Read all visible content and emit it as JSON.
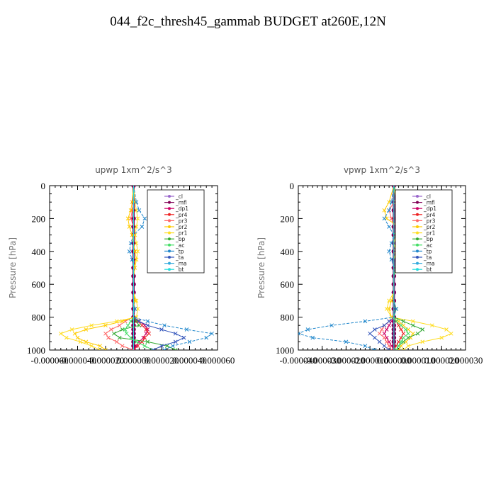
{
  "page": {
    "title": "044_f2c_thresh45_gammab  BUDGET at260E,12N"
  },
  "legend_labels": [
    "_cl",
    "_mfl",
    "_dp1",
    "_pr4",
    "_pr3",
    "_pr2",
    "_pr1",
    "_bp",
    "_ac",
    "_tp",
    "_ta",
    "_ma",
    "_bt"
  ],
  "colors": {
    "_cl": "#9966cc",
    "_mfl": "#800055",
    "_dp1": "#cc0066",
    "_pr4": "#ee2222",
    "_pr3": "#ff6666",
    "_pr2": "#ffcc00",
    "_pr1": "#ffdd22",
    "_bp": "#33aa33",
    "_ac": "#44dd66",
    "_tp": "#2288cc",
    "_ta": "#3355bb",
    "_ma": "#33aadd",
    "_bt": "#22dddd"
  },
  "chart_data": [
    {
      "type": "line",
      "title": "upwp   1xm^2/s^3",
      "ylabel": "Pressure [hPa]",
      "xlabel": "",
      "xlim": [
        -6e-05,
        6e-05
      ],
      "ylim": [
        1000,
        0
      ],
      "x_tick_labels": [
        "-0.000060",
        "-0.000040",
        "-0.000020",
        "0.000000",
        "0.000020",
        "0.000040",
        "0.000060"
      ],
      "y_tick_labels": [
        "0",
        "200",
        "400",
        "600",
        "800",
        "1000"
      ],
      "legend_position": "top-right",
      "y": [
        0,
        100,
        150,
        200,
        250,
        300,
        350,
        400,
        450,
        500,
        550,
        600,
        650,
        700,
        750,
        800,
        825,
        850,
        875,
        900,
        925,
        950,
        975,
        1000
      ],
      "series": [
        {
          "name": "_cl",
          "values": [
            0,
            0,
            0,
            0,
            0,
            0,
            0,
            0,
            0,
            0,
            0,
            0,
            0,
            0,
            0,
            0,
            0,
            0,
            0,
            0,
            0,
            0,
            0,
            0
          ]
        },
        {
          "name": "_mfl",
          "values": [
            0,
            0,
            0,
            0,
            0,
            0,
            0,
            0,
            0,
            0,
            0,
            0,
            0,
            0,
            0,
            0,
            0,
            0,
            0,
            0,
            0,
            0,
            0,
            0
          ]
        },
        {
          "name": "_dp1",
          "values": [
            0,
            0,
            0,
            0,
            0,
            0,
            0,
            0,
            0,
            0,
            0,
            0,
            0,
            0,
            0,
            0,
            4e-06,
            8e-06,
            1e-05,
            9e-06,
            7e-06,
            4e-06,
            2e-06,
            0
          ]
        },
        {
          "name": "_pr4",
          "values": [
            0,
            0,
            0,
            0,
            0,
            0,
            0,
            0,
            0,
            0,
            0,
            0,
            0,
            0,
            0,
            0,
            3e-06,
            6e-06,
            9e-06,
            1.1e-05,
            8e-06,
            6e-06,
            3e-06,
            0
          ]
        },
        {
          "name": "_pr3",
          "values": [
            0,
            0,
            -1e-06,
            -2e-06,
            0,
            0,
            0,
            0,
            0,
            0,
            0,
            0,
            0,
            0,
            0,
            0,
            -6e-06,
            -1e-05,
            -1.6e-05,
            -2e-05,
            -1.8e-05,
            -1.2e-05,
            -8e-06,
            0
          ]
        },
        {
          "name": "_pr2",
          "values": [
            0,
            -1e-06,
            -2e-06,
            -4e-06,
            -3e-06,
            -1e-06,
            0,
            1e-06,
            2e-06,
            0,
            0,
            0,
            0,
            1e-06,
            0,
            0,
            -8e-06,
            -2e-05,
            -3.4e-05,
            -4.2e-05,
            -4e-05,
            -3.4e-05,
            -2.4e-05,
            -2e-05
          ]
        },
        {
          "name": "_pr1",
          "values": [
            0,
            1e-06,
            2e-06,
            3e-06,
            2e-06,
            1e-06,
            2e-06,
            3e-06,
            2e-06,
            1e-06,
            0,
            0,
            0,
            2e-06,
            3e-06,
            2e-06,
            -1.2e-05,
            -3e-05,
            -4.4e-05,
            -5.2e-05,
            -4.8e-05,
            -3.8e-05,
            -3e-05,
            -2.4e-05
          ]
        },
        {
          "name": "_bp",
          "values": [
            0,
            0,
            0,
            0,
            0,
            0,
            0,
            0,
            0,
            0,
            0,
            0,
            0,
            0,
            0,
            0,
            2e-06,
            4e-06,
            -8e-06,
            -1.4e-05,
            -1e-05,
            1e-05,
            2.4e-05,
            3e-05
          ]
        },
        {
          "name": "_ac",
          "values": [
            0,
            0,
            0,
            0,
            0,
            0,
            0,
            0,
            0,
            0,
            0,
            0,
            0,
            0,
            0,
            0,
            -2e-06,
            -4e-06,
            -6e-06,
            -5e-06,
            -2e-06,
            2e-06,
            8e-06,
            1.4e-05
          ]
        },
        {
          "name": "_tp",
          "values": [
            0,
            2e-06,
            4e-06,
            8e-06,
            6e-06,
            0,
            -2e-06,
            -3e-06,
            -1e-06,
            0,
            0,
            0,
            0,
            0,
            1e-06,
            0,
            1e-05,
            2.2e-05,
            3.8e-05,
            5.6e-05,
            5.2e-05,
            4e-05,
            2.8e-05,
            2.2e-05
          ]
        },
        {
          "name": "_ta",
          "values": [
            0,
            0,
            0,
            0,
            0,
            0,
            0,
            0,
            0,
            0,
            0,
            0,
            0,
            0,
            0,
            0,
            4e-06,
            1e-05,
            2e-05,
            3e-05,
            3.6e-05,
            3e-05,
            2e-05,
            1.4e-05
          ]
        },
        {
          "name": "_ma",
          "values": [
            0,
            0,
            0,
            0,
            0,
            0,
            0,
            0,
            0,
            0,
            0,
            0,
            0,
            0,
            0,
            0,
            0,
            0,
            0,
            0,
            0,
            0,
            0,
            0
          ]
        },
        {
          "name": "_bt",
          "values": [
            0,
            0,
            0,
            0,
            0,
            0,
            0,
            0,
            0,
            0,
            0,
            0,
            0,
            0,
            0,
            0,
            0,
            0,
            0,
            0,
            0,
            0,
            0,
            0
          ]
        }
      ]
    },
    {
      "type": "line",
      "title": "vpwp   1xm^2/s^3",
      "ylabel": "Pressure [hPa]",
      "xlabel": "",
      "xlim": [
        -4e-05,
        3e-05
      ],
      "ylim": [
        1000,
        0
      ],
      "x_tick_labels": [
        "-0.000040",
        "-0.000030",
        "-0.000020",
        "-0.000010",
        "0.000000",
        "0.000010",
        "0.000020",
        "0.000030"
      ],
      "y_tick_labels": [
        "0",
        "200",
        "400",
        "600",
        "800",
        "1000"
      ],
      "legend_position": "top-right",
      "y": [
        0,
        100,
        150,
        200,
        250,
        300,
        350,
        400,
        450,
        500,
        550,
        600,
        650,
        700,
        750,
        800,
        825,
        850,
        875,
        900,
        925,
        950,
        975,
        1000
      ],
      "series": [
        {
          "name": "_cl",
          "values": [
            0,
            0,
            0,
            0,
            0,
            0,
            0,
            0,
            0,
            0,
            0,
            0,
            0,
            0,
            0,
            0,
            0,
            0,
            0,
            0,
            0,
            0,
            0,
            0
          ]
        },
        {
          "name": "_mfl",
          "values": [
            0,
            0,
            0,
            0,
            0,
            0,
            0,
            0,
            0,
            0,
            0,
            0,
            0,
            0,
            0,
            0,
            0,
            0,
            0,
            0,
            0,
            0,
            0,
            0
          ]
        },
        {
          "name": "_dp1",
          "values": [
            0,
            0,
            0,
            0,
            0,
            0,
            0,
            0,
            0,
            0,
            0,
            0,
            0,
            0,
            0,
            0,
            -1e-06,
            -2e-06,
            -3e-06,
            -4e-06,
            -3e-06,
            -2e-06,
            -1e-06,
            0
          ]
        },
        {
          "name": "_pr4",
          "values": [
            0,
            0,
            0,
            0,
            0,
            0,
            0,
            0,
            0,
            0,
            0,
            0,
            0,
            0,
            0,
            0,
            1e-06,
            2e-06,
            3e-06,
            4e-06,
            3e-06,
            2e-06,
            1e-06,
            0
          ]
        },
        {
          "name": "_pr3",
          "values": [
            0,
            0,
            -2e-06,
            -1e-06,
            0,
            0,
            0,
            0,
            0,
            0,
            0,
            0,
            0,
            0,
            0,
            0,
            -2e-06,
            -4e-06,
            -5e-06,
            -6e-06,
            -4e-06,
            -3e-06,
            -2e-06,
            -1e-06
          ]
        },
        {
          "name": "_pr2",
          "values": [
            0,
            -2e-06,
            -4e-06,
            -3e-06,
            2e-06,
            1e-06,
            0,
            1e-06,
            0,
            0,
            0,
            0,
            0,
            -1e-06,
            -2e-06,
            -1e-06,
            2e-06,
            4e-06,
            6e-06,
            8e-06,
            7e-06,
            5e-06,
            3e-06,
            2e-06
          ]
        },
        {
          "name": "_pr1",
          "values": [
            0,
            1e-06,
            3e-06,
            4e-06,
            3e-06,
            1e-06,
            0,
            1e-06,
            2e-06,
            1e-06,
            0,
            0,
            0,
            -2e-06,
            -3e-06,
            -1e-06,
            8e-06,
            1.6e-05,
            2.2e-05,
            2.4e-05,
            2e-05,
            1.2e-05,
            6e-06,
            4e-06
          ]
        },
        {
          "name": "_bp",
          "values": [
            0,
            2e-06,
            4e-06,
            2e-06,
            3e-06,
            1e-06,
            2e-06,
            4e-06,
            2e-06,
            1e-06,
            0,
            0,
            0,
            0,
            1e-06,
            0,
            4e-06,
            8e-06,
            1.2e-05,
            1e-05,
            6e-06,
            4e-06,
            2e-06,
            1e-06
          ]
        },
        {
          "name": "_ac",
          "values": [
            0,
            0,
            0,
            0,
            0,
            0,
            0,
            0,
            0,
            0,
            0,
            0,
            0,
            0,
            0,
            0,
            1e-06,
            3e-06,
            5e-06,
            6e-06,
            4e-06,
            3e-06,
            2e-06,
            1e-06
          ]
        },
        {
          "name": "_tp",
          "values": [
            0,
            -1e-06,
            -2e-06,
            -4e-06,
            -2e-06,
            0,
            -1e-06,
            -2e-06,
            -1e-06,
            0,
            0,
            0,
            0,
            0,
            1e-06,
            0,
            -1.2e-05,
            -2.6e-05,
            -3.6e-05,
            -4e-05,
            -3.4e-05,
            -2e-05,
            -1.2e-05,
            -8e-06
          ]
        },
        {
          "name": "_ta",
          "values": [
            0,
            0,
            0,
            0,
            0,
            0,
            0,
            0,
            0,
            0,
            0,
            0,
            0,
            0,
            0,
            0,
            -2e-06,
            -4e-06,
            -8e-06,
            -1e-05,
            -8e-06,
            -6e-06,
            -4e-06,
            -2e-06
          ]
        },
        {
          "name": "_ma",
          "values": [
            0,
            0,
            0,
            0,
            0,
            0,
            0,
            0,
            0,
            0,
            0,
            0,
            0,
            0,
            0,
            0,
            0,
            0,
            0,
            0,
            0,
            0,
            0,
            0
          ]
        },
        {
          "name": "_bt",
          "values": [
            0,
            0,
            0,
            0,
            0,
            0,
            0,
            0,
            0,
            0,
            0,
            0,
            0,
            0,
            0,
            0,
            0,
            0,
            0,
            0,
            0,
            0,
            0,
            0
          ]
        }
      ]
    }
  ]
}
